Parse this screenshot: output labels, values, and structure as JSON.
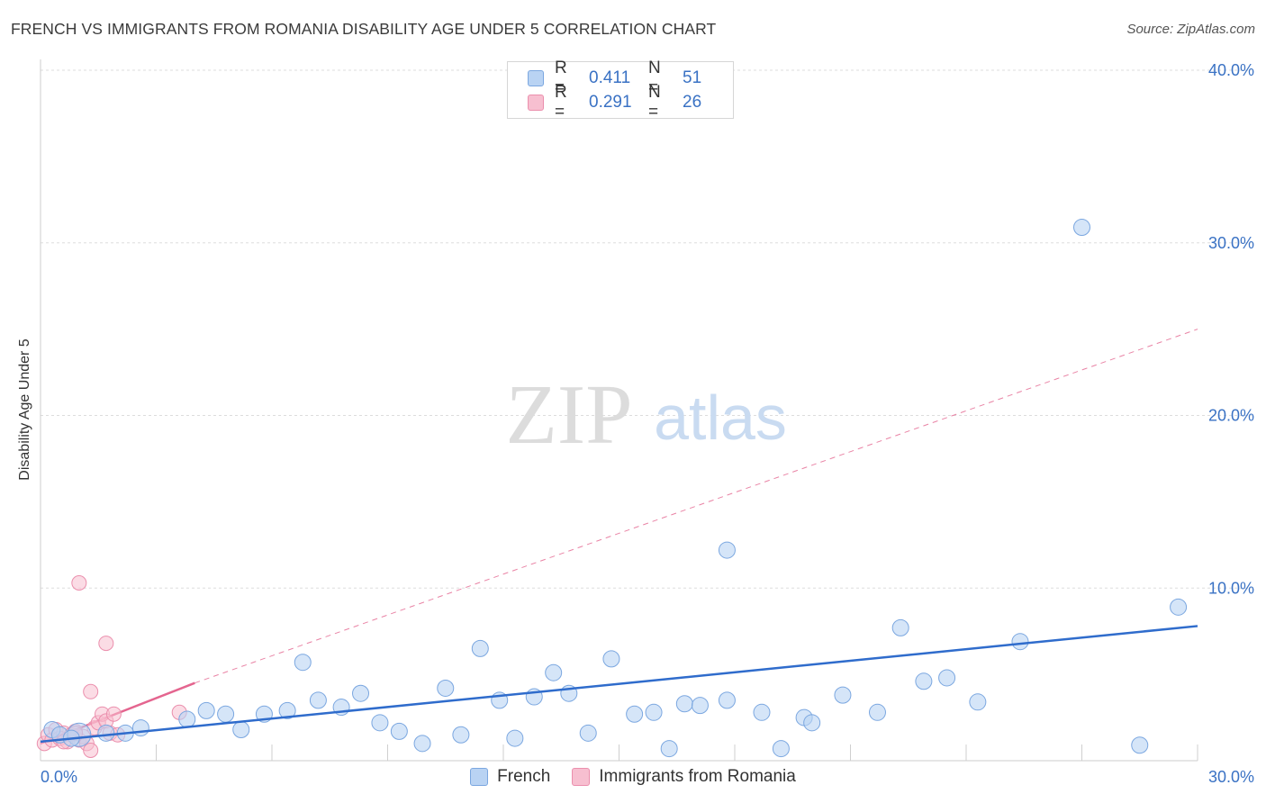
{
  "title": "FRENCH VS IMMIGRANTS FROM ROMANIA DISABILITY AGE UNDER 5 CORRELATION CHART",
  "source": "Source: ZipAtlas.com",
  "watermark": {
    "zip": "ZIP",
    "atlas": "atlas"
  },
  "legend": {
    "rows": [
      {
        "r_label": "R =",
        "r_value": "0.411",
        "n_label": "N =",
        "n_value": "51"
      },
      {
        "r_label": "R =",
        "r_value": "0.291",
        "n_label": "N =",
        "n_value": "26"
      }
    ]
  },
  "bottom_legend": {
    "french": "French",
    "romania": "Immigrants from Romania"
  },
  "colors": {
    "french_fill": "#b9d3f3",
    "french_stroke": "#7ba7e0",
    "french_line": "#2f6ccc",
    "romania_fill": "#f7bfd0",
    "romania_stroke": "#eb8fad",
    "romania_line": "#e4658f",
    "axis_label": "#3a72c4",
    "grid": "#dddddd"
  },
  "chart_data": {
    "type": "scatter",
    "title": "FRENCH VS IMMIGRANTS FROM ROMANIA DISABILITY AGE UNDER 5 CORRELATION CHART",
    "xlabel": "",
    "ylabel": "Disability Age Under 5",
    "xlim": [
      0,
      30
    ],
    "ylim": [
      0,
      40
    ],
    "x_tick_labels": [
      "0.0%",
      "30.0%"
    ],
    "y_tick_labels": [
      "10.0%",
      "20.0%",
      "30.0%",
      "40.0%"
    ],
    "y_ticks": [
      10,
      20,
      30,
      40
    ],
    "grid": true,
    "legend_position": "top-center",
    "series": [
      {
        "name": "French",
        "r": 0.411,
        "n": 51,
        "trend": {
          "x": [
            0,
            30
          ],
          "y": [
            1.1,
            7.8
          ],
          "style": "solid"
        },
        "points": [
          [
            0.3,
            1.8,
            1
          ],
          [
            0.5,
            1.5,
            1
          ],
          [
            1.0,
            1.5,
            2
          ],
          [
            1.7,
            1.6,
            1
          ],
          [
            2.2,
            1.6,
            1
          ],
          [
            2.6,
            1.9,
            1
          ],
          [
            3.8,
            2.4,
            1
          ],
          [
            4.3,
            2.9,
            1
          ],
          [
            4.8,
            2.7,
            1
          ],
          [
            5.2,
            1.8,
            1
          ],
          [
            5.8,
            2.7,
            1
          ],
          [
            6.4,
            2.9,
            1
          ],
          [
            6.8,
            5.7,
            1
          ],
          [
            7.2,
            3.5,
            1
          ],
          [
            7.8,
            3.1,
            1
          ],
          [
            8.3,
            3.9,
            1
          ],
          [
            8.8,
            2.2,
            1
          ],
          [
            9.3,
            1.7,
            1
          ],
          [
            9.9,
            1.0,
            1
          ],
          [
            10.5,
            4.2,
            1
          ],
          [
            10.9,
            1.5,
            1
          ],
          [
            11.4,
            6.5,
            1
          ],
          [
            11.9,
            3.5,
            1
          ],
          [
            12.3,
            1.3,
            1
          ],
          [
            12.8,
            3.7,
            1
          ],
          [
            13.3,
            5.1,
            1
          ],
          [
            13.7,
            3.9,
            1
          ],
          [
            14.2,
            1.6,
            1
          ],
          [
            14.8,
            5.9,
            1
          ],
          [
            15.4,
            2.7,
            1
          ],
          [
            15.9,
            2.8,
            1
          ],
          [
            16.3,
            0.7,
            1
          ],
          [
            16.7,
            3.3,
            1
          ],
          [
            17.1,
            3.2,
            1
          ],
          [
            17.8,
            12.2,
            1
          ],
          [
            17.8,
            3.5,
            1
          ],
          [
            18.7,
            2.8,
            1
          ],
          [
            19.2,
            0.7,
            1
          ],
          [
            19.8,
            2.5,
            1
          ],
          [
            20.0,
            2.2,
            1
          ],
          [
            20.8,
            3.8,
            1
          ],
          [
            21.7,
            2.8,
            1
          ],
          [
            22.3,
            7.7,
            1
          ],
          [
            22.9,
            4.6,
            1
          ],
          [
            23.5,
            4.8,
            1
          ],
          [
            24.3,
            3.4,
            1
          ],
          [
            25.4,
            6.9,
            1
          ],
          [
            27.0,
            30.9,
            1
          ],
          [
            28.5,
            0.9,
            1
          ],
          [
            29.5,
            8.9,
            1
          ],
          [
            0.8,
            1.3,
            1
          ]
        ]
      },
      {
        "name": "Immigrants from Romania",
        "r": 0.291,
        "n": 26,
        "trend": {
          "x": [
            0,
            4.0
          ],
          "y": [
            1.0,
            4.5
          ],
          "style": "solid",
          "ext_x": [
            4.0,
            30
          ],
          "ext_y": [
            4.5,
            25.0
          ],
          "ext_style": "dashed"
        },
        "points": [
          [
            0.1,
            1.0,
            1
          ],
          [
            0.2,
            1.5,
            1
          ],
          [
            0.3,
            1.2,
            1
          ],
          [
            0.4,
            1.8,
            1
          ],
          [
            0.5,
            1.3,
            1
          ],
          [
            0.6,
            1.6,
            1
          ],
          [
            0.7,
            1.1,
            1
          ],
          [
            0.8,
            1.5,
            1
          ],
          [
            0.9,
            1.7,
            1
          ],
          [
            1.0,
            1.2,
            1
          ],
          [
            1.1,
            1.4,
            1
          ],
          [
            1.2,
            1.0,
            1
          ],
          [
            1.3,
            0.6,
            1
          ],
          [
            1.4,
            1.9,
            1
          ],
          [
            1.5,
            2.2,
            1
          ],
          [
            1.6,
            2.7,
            1
          ],
          [
            1.7,
            2.3,
            1
          ],
          [
            1.8,
            1.6,
            1
          ],
          [
            1.9,
            2.7,
            1
          ],
          [
            2.0,
            1.5,
            1
          ],
          [
            1.0,
            10.3,
            1
          ],
          [
            1.7,
            6.8,
            1
          ],
          [
            1.3,
            4.0,
            1
          ],
          [
            3.6,
            2.8,
            1
          ],
          [
            0.6,
            1.1,
            1
          ],
          [
            0.9,
            1.6,
            1
          ]
        ]
      }
    ]
  }
}
